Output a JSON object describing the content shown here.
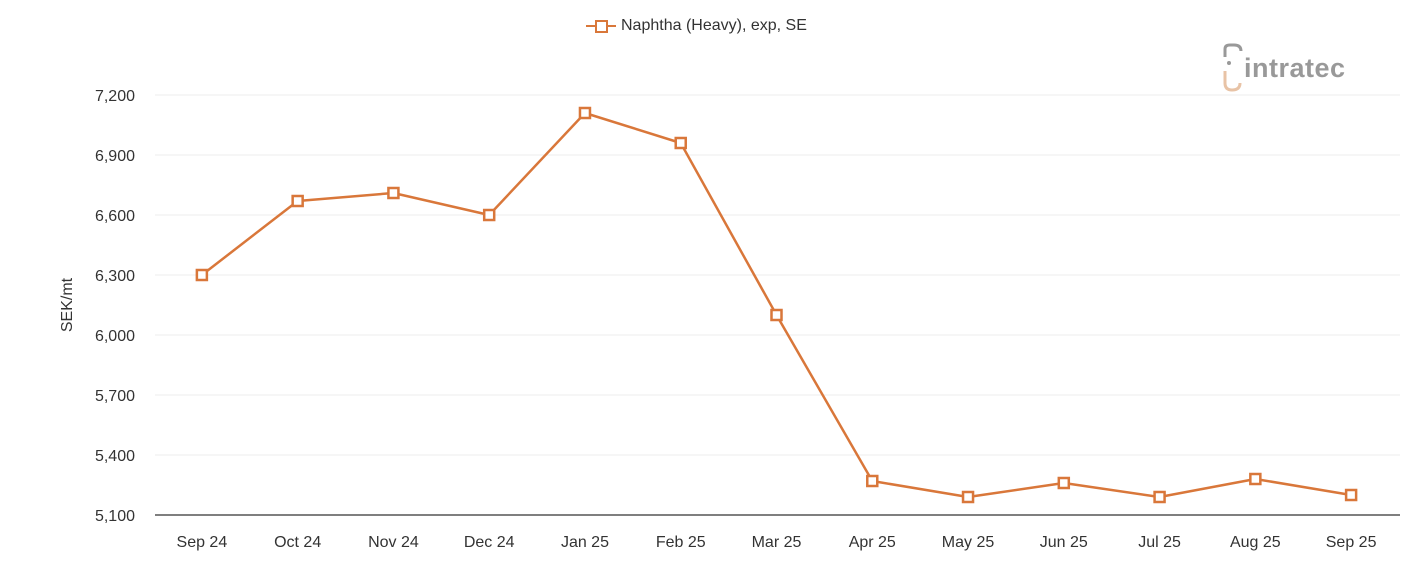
{
  "legend": {
    "label": "Naphtha (Heavy), exp, SE",
    "color": "#d9773a"
  },
  "logo": {
    "text": "intratec"
  },
  "chart_data": {
    "type": "line",
    "title": "",
    "xlabel": "",
    "ylabel": "SEK/mt",
    "ylim": [
      5100,
      7200
    ],
    "yticks": [
      5100,
      5400,
      5700,
      6000,
      6300,
      6600,
      6900,
      7200
    ],
    "ytick_labels": [
      "5,100",
      "5,400",
      "5,700",
      "6,000",
      "6,300",
      "6,600",
      "6,900",
      "7,200"
    ],
    "grid": true,
    "legend_position": "top",
    "categories": [
      "Sep 24",
      "Oct 24",
      "Nov 24",
      "Dec 24",
      "Jan 25",
      "Feb 25",
      "Mar 25",
      "Apr 25",
      "May 25",
      "Jun 25",
      "Jul 25",
      "Aug 25",
      "Sep 25"
    ],
    "series": [
      {
        "name": "Naphtha (Heavy), exp, SE",
        "color": "#d9773a",
        "marker": "square",
        "values": [
          6300,
          6670,
          6710,
          6600,
          7110,
          6960,
          6100,
          5270,
          5190,
          5260,
          5190,
          5280,
          5200
        ]
      }
    ]
  }
}
